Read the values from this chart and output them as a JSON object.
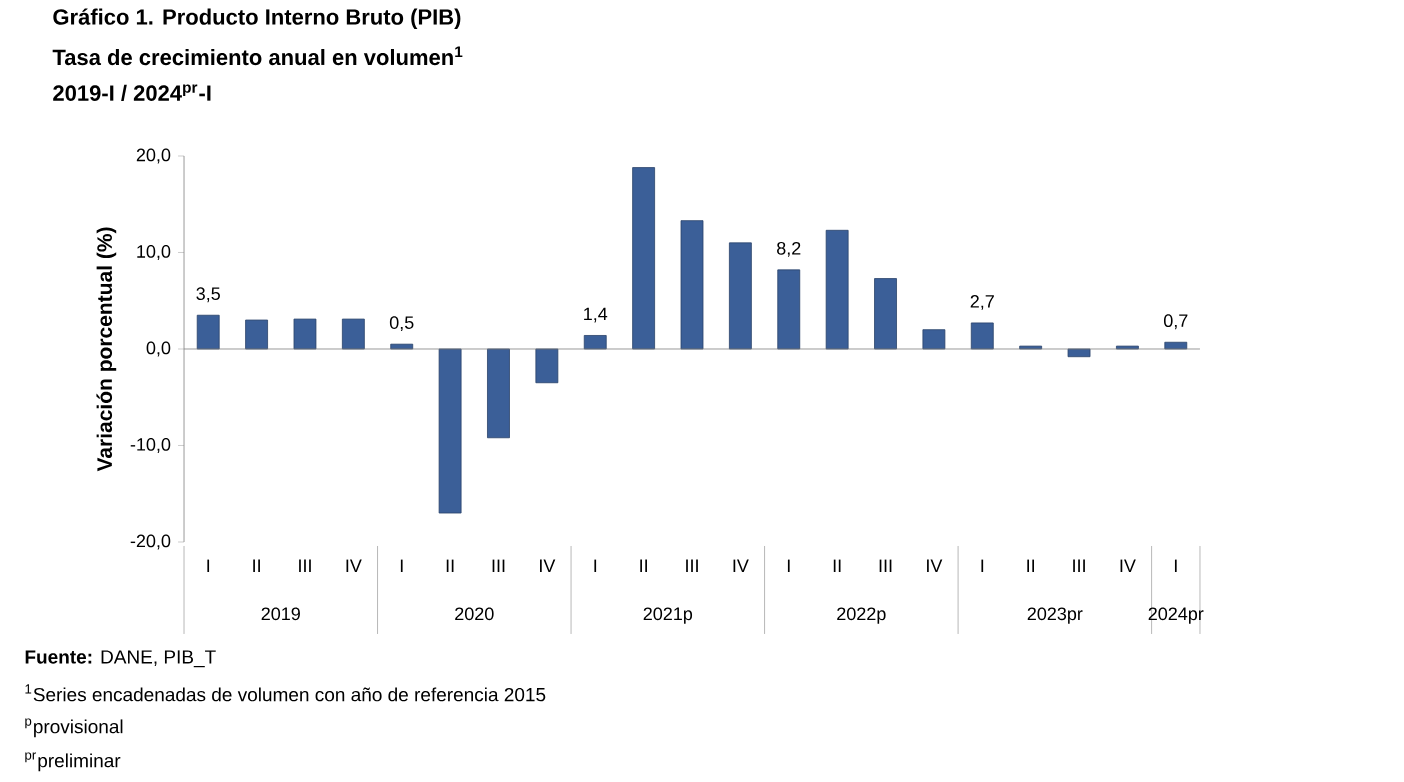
{
  "chart_data": {
    "type": "bar",
    "title": "Gráfico 1. Producto Interno Bruto (PIB)",
    "subtitle": [
      "Tasa de crecimiento anual en volumen$^{1}$",
      "2019-I / 2024$^{pr}$-I"
    ],
    "ylabel": "Variación porcentual (%)",
    "categories": [
      "I",
      "II",
      "III",
      "IV",
      "I",
      "II",
      "III",
      "IV",
      "I",
      "II",
      "III",
      "IV",
      "I",
      "II",
      "III",
      "IV",
      "I",
      "II",
      "III",
      "IV",
      "I"
    ],
    "values": [
      3.5,
      3.0,
      3.1,
      3.1,
      0.5,
      -17.0,
      -9.2,
      -3.5,
      1.4,
      18.8,
      13.3,
      11.0,
      8.2,
      12.3,
      7.3,
      2.0,
      2.7,
      0.3,
      -0.8,
      0.3,
      0.7
    ],
    "value_labels": [
      "3,5",
      null,
      null,
      null,
      "0,5",
      null,
      null,
      null,
      "1,4",
      null,
      null,
      null,
      "8,2",
      null,
      null,
      null,
      "2,7",
      null,
      null,
      null,
      "0,7"
    ],
    "color": "#3b5f98",
    "ylim": [
      -20,
      20
    ],
    "yticks": [
      {
        "value": -20,
        "label": "-20,0"
      },
      {
        "value": -10,
        "label": "-10,0"
      },
      {
        "value": 0,
        "label": "0,0"
      },
      {
        "value": 10,
        "label": "10,0"
      },
      {
        "value": 20,
        "label": "20,0"
      }
    ],
    "annotations": [
      "2019",
      "2020",
      "2021p",
      "2022p",
      "2023pr",
      "2024pr",
      "**Fuente:** DANE, PIB_T",
      "$^{1}$Series encadenadas de volumen con año de referencia 2015",
      "$^{p}$provisional",
      "$^{pr}$preliminar"
    ]
  }
}
